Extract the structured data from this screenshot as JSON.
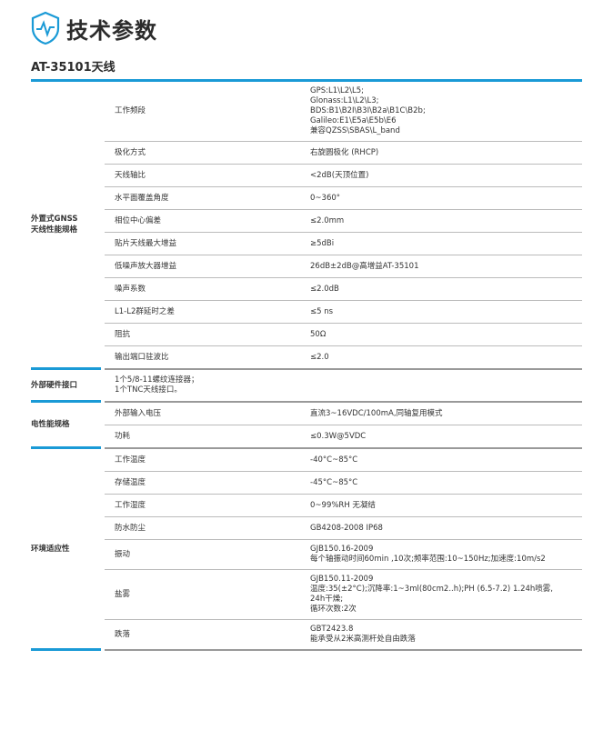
{
  "header": {
    "title": "技术参数",
    "subtitle": "AT-35101天线",
    "accent": "#1a9ad6"
  },
  "groups": [
    {
      "label": "外置式GNSS\n天线性能规格",
      "rows": [
        {
          "k": "工作频段",
          "v": "GPS:L1\\L2\\L5;\nGlonass:L1\\L2\\L3;\nBDS:B1\\B2I\\B3I\\B2a\\B1C\\B2b;\nGalileo:E1\\E5a\\E5b\\E6\n兼容QZSS\\SBAS\\L_band"
        },
        {
          "k": "极化方式",
          "v": "右旋圆极化 (RHCP)"
        },
        {
          "k": "天线轴比",
          "v": "<2dB(天顶位置)"
        },
        {
          "k": "水平面覆盖角度",
          "v": "0~360°"
        },
        {
          "k": "相位中心偏差",
          "v": "≤2.0mm"
        },
        {
          "k": "贴片天线最大增益",
          "v": "≥5dBi"
        },
        {
          "k": "低噪声放大器增益",
          "v": "26dB±2dB@高增益AT-35101"
        },
        {
          "k": "噪声系数",
          "v": "≤2.0dB"
        },
        {
          "k": "L1-L2群延时之差",
          "v": "≤5 ns"
        },
        {
          "k": "阻抗",
          "v": "50Ω"
        },
        {
          "k": "输出端口驻波比",
          "v": "≤2.0"
        }
      ]
    },
    {
      "label": "外部硬件接口",
      "full": "1个5/8-11螺纹连接器；\n1个TNC天线接口。"
    },
    {
      "label": "电性能规格",
      "rows": [
        {
          "k": "外部输入电压",
          "v": "直流3~16VDC/100mA,同轴复用模式"
        },
        {
          "k": "功耗",
          "v": "≤0.3W@5VDC"
        }
      ]
    },
    {
      "label": "环境适应性",
      "rows": [
        {
          "k": "工作温度",
          "v": "-40°C~85°C"
        },
        {
          "k": "存储温度",
          "v": "-45°C~85°C"
        },
        {
          "k": "工作湿度",
          "v": "0~99%RH 无凝结"
        },
        {
          "k": "防水防尘",
          "v": "GB4208-2008  IP68"
        },
        {
          "k": "振动",
          "v": "GJB150.16-2009\n每个轴振动时间60min ,10次;频率范围:10~150Hz;加速度:10m/s2"
        },
        {
          "k": "盐雾",
          "v": "GJB150.11-2009\n温度:35(±2°C);沉降率:1~3ml(80cm2..h);PH (6.5-7.2) 1.24h喷雾,\n24h干燥;\n循环次数:2次"
        },
        {
          "k": "跌落",
          "v": "GBT2423.8\n能承受从2米高测杆处自由跌落"
        }
      ]
    }
  ]
}
